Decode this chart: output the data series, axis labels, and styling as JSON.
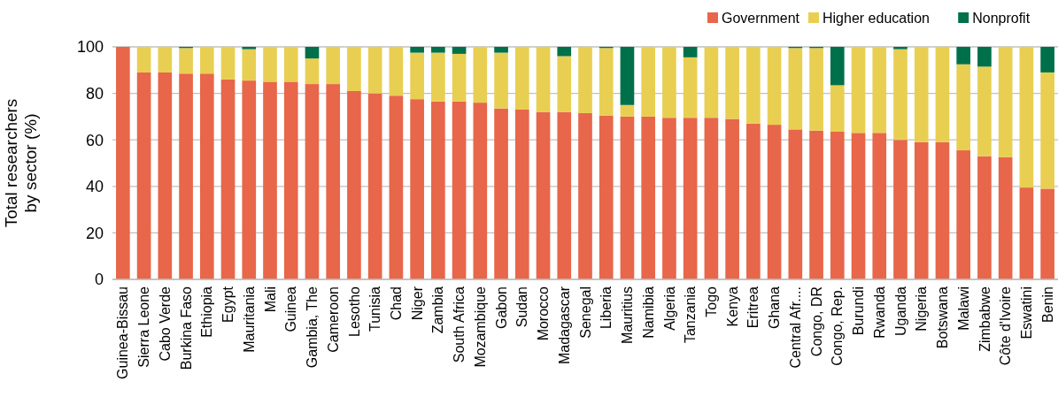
{
  "chart_data": {
    "type": "bar",
    "stacked": true,
    "ylabel": "Total researchers\nby sector (%)",
    "categories": [
      "Guinea-Bissau",
      "Sierra Leone",
      "Cabo Verde",
      "Burkina Faso",
      "Ethiopia",
      "Egypt",
      "Mauritania",
      "Mali",
      "Guinea",
      "Gambia, The",
      "Cameroon",
      "Lesotho",
      "Tunisia",
      "Chad",
      "Niger",
      "Zambia",
      "South Africa",
      "Mozambique",
      "Gabon",
      "Sudan",
      "Morocco",
      "Madagascar",
      "Senegal",
      "Liberia",
      "Mauritius",
      "Namibia",
      "Algeria",
      "Tanzania",
      "Togo",
      "Kenya",
      "Eritrea",
      "Ghana",
      "Central Afr....",
      "Congo, DR",
      "Congo, Rep.",
      "Burundi",
      "Rwanda",
      "Uganda",
      "Nigeria",
      "Botswana",
      "Malawi",
      "Zimbabwe",
      "Côte d'Ivoire",
      "Eswatini",
      "Benin"
    ],
    "series": [
      {
        "name": "Government",
        "color": "#e8664a",
        "values": [
          100,
          89,
          89,
          88.5,
          88.5,
          86,
          85.5,
          85,
          85,
          84,
          84,
          81,
          80,
          79,
          77.5,
          76.5,
          76.5,
          76,
          73.5,
          73,
          72,
          72,
          71.5,
          70.5,
          70,
          70,
          69.5,
          69.5,
          69.5,
          69,
          67,
          66.5,
          64.5,
          64,
          63.5,
          63,
          63,
          60,
          59,
          59,
          55.5,
          53,
          52.5,
          39.5,
          39
        ]
      },
      {
        "name": "Higher education",
        "color": "#e8cf52",
        "values": [
          0,
          11,
          11,
          11,
          11.5,
          14,
          13.5,
          15,
          15,
          11,
          16,
          19,
          20,
          21,
          20,
          21,
          20.5,
          24,
          24,
          27,
          28,
          24,
          28.5,
          29,
          5,
          30,
          30.5,
          26,
          30.5,
          31,
          33,
          33.5,
          35,
          35.5,
          20,
          37,
          37,
          39,
          41,
          41,
          37,
          38.5,
          47.5,
          60.5,
          50
        ]
      },
      {
        "name": "Nonprofit",
        "color": "#00704a",
        "values": [
          0,
          0,
          0,
          0.5,
          0,
          0,
          1,
          0,
          0,
          5,
          0,
          0,
          0,
          0,
          2.5,
          2.5,
          3,
          0,
          2.5,
          0,
          0,
          4,
          0,
          0.5,
          25,
          0,
          0,
          4.5,
          0,
          0,
          0,
          0,
          0.5,
          0.5,
          16.5,
          0,
          0,
          1,
          0,
          0,
          7.5,
          8.5,
          0,
          0,
          11
        ]
      }
    ],
    "ylim": [
      0,
      100
    ],
    "yticks": [
      0,
      20,
      40,
      60,
      80,
      100
    ],
    "grid": "y",
    "legend": "top right"
  }
}
